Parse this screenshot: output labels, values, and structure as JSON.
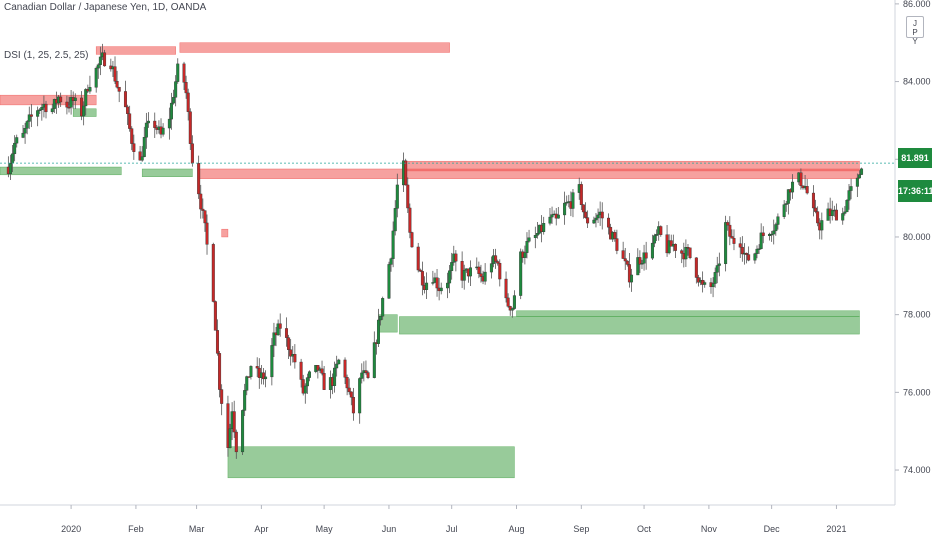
{
  "header": {
    "symbol_title": "Canadian Dollar / Japanese Yen, 1D, OANDA",
    "indicator": "DSI (1, 25, 2.5, 25)"
  },
  "currency_badge": [
    "J",
    "P",
    "Y"
  ],
  "last_price": "81.891",
  "countdown": "17:36:11",
  "colors": {
    "up": "#26a69a",
    "bull": "#1e8a3e",
    "bear": "#c62828",
    "supply": "#ef5350",
    "demand": "#43a047",
    "grid": "#ffffff",
    "axis_text": "#434651"
  },
  "chart_data": {
    "type": "candlestick",
    "y_range": [
      73.1,
      86.1
    ],
    "y_ticks": [
      {
        "value": 86,
        "label": "86.000"
      },
      {
        "value": 84,
        "label": "84.000"
      },
      {
        "value": 82,
        "label": "82.000"
      },
      {
        "value": 80,
        "label": "80.000"
      },
      {
        "value": 78,
        "label": "78.000"
      },
      {
        "value": 76,
        "label": "76.000"
      },
      {
        "value": 74,
        "label": "74.000"
      }
    ],
    "x_range": [
      "2019-11-28",
      "2021-01-29"
    ],
    "x_ticks": [
      {
        "date": "2020-01-01",
        "label": "2020"
      },
      {
        "date": "2020-02-01",
        "label": "Feb"
      },
      {
        "date": "2020-03-01",
        "label": "Mar"
      },
      {
        "date": "2020-04-01",
        "label": "Apr"
      },
      {
        "date": "2020-05-01",
        "label": "May"
      },
      {
        "date": "2020-06-01",
        "label": "Jun"
      },
      {
        "date": "2020-07-01",
        "label": "Jul"
      },
      {
        "date": "2020-08-01",
        "label": "Aug"
      },
      {
        "date": "2020-09-01",
        "label": "Sep"
      },
      {
        "date": "2020-10-01",
        "label": "Oct"
      },
      {
        "date": "2020-11-01",
        "label": "Nov"
      },
      {
        "date": "2020-12-01",
        "label": "Dec"
      },
      {
        "date": "2021-01-01",
        "label": "2021"
      }
    ],
    "close_path": [
      [
        "2019-12-02",
        81.8
      ],
      [
        "2019-12-05",
        82.4
      ],
      [
        "2019-12-09",
        82.6
      ],
      [
        "2019-12-12",
        83.0
      ],
      [
        "2019-12-16",
        83.3
      ],
      [
        "2019-12-19",
        83.4
      ],
      [
        "2019-12-23",
        83.3
      ],
      [
        "2019-12-26",
        83.6
      ],
      [
        "2019-12-30",
        83.4
      ],
      [
        "2020-01-02",
        83.5
      ],
      [
        "2020-01-06",
        83.2
      ],
      [
        "2020-01-09",
        83.9
      ],
      [
        "2020-01-13",
        84.3
      ],
      [
        "2020-01-16",
        84.6
      ],
      [
        "2020-01-20",
        84.5
      ],
      [
        "2020-01-23",
        83.9
      ],
      [
        "2020-01-27",
        83.3
      ],
      [
        "2020-01-30",
        82.5
      ],
      [
        "2020-02-03",
        81.9
      ],
      [
        "2020-02-06",
        82.8
      ],
      [
        "2020-02-10",
        82.9
      ],
      [
        "2020-02-13",
        82.6
      ],
      [
        "2020-02-17",
        83.1
      ],
      [
        "2020-02-20",
        84.0
      ],
      [
        "2020-02-22",
        84.6
      ],
      [
        "2020-02-25",
        83.7
      ],
      [
        "2020-02-28",
        82.0
      ],
      [
        "2020-03-02",
        81.2
      ],
      [
        "2020-03-05",
        80.2
      ],
      [
        "2020-03-09",
        78.5
      ],
      [
        "2020-03-12",
        76.2
      ],
      [
        "2020-03-16",
        74.6
      ],
      [
        "2020-03-18",
        75.6
      ],
      [
        "2020-03-20",
        74.6
      ],
      [
        "2020-03-24",
        76.0
      ],
      [
        "2020-03-27",
        76.7
      ],
      [
        "2020-03-31",
        76.4
      ],
      [
        "2020-04-03",
        76.4
      ],
      [
        "2020-04-07",
        77.4
      ],
      [
        "2020-04-10",
        77.7
      ],
      [
        "2020-04-14",
        77.2
      ],
      [
        "2020-04-17",
        76.8
      ],
      [
        "2020-04-21",
        76.0
      ],
      [
        "2020-04-24",
        76.4
      ],
      [
        "2020-04-28",
        76.6
      ],
      [
        "2020-05-01",
        76.2
      ],
      [
        "2020-05-05",
        76.3
      ],
      [
        "2020-05-08",
        76.8
      ],
      [
        "2020-05-12",
        76.2
      ],
      [
        "2020-05-15",
        75.5
      ],
      [
        "2020-05-19",
        76.5
      ],
      [
        "2020-05-22",
        76.3
      ],
      [
        "2020-05-26",
        77.4
      ],
      [
        "2020-05-29",
        78.4
      ],
      [
        "2020-06-02",
        79.6
      ],
      [
        "2020-06-05",
        81.3
      ],
      [
        "2020-06-08",
        81.8
      ],
      [
        "2020-06-11",
        80.1
      ],
      [
        "2020-06-15",
        79.2
      ],
      [
        "2020-06-18",
        78.8
      ],
      [
        "2020-06-22",
        79.0
      ],
      [
        "2020-06-25",
        78.7
      ],
      [
        "2020-06-29",
        78.9
      ],
      [
        "2020-07-02",
        79.4
      ],
      [
        "2020-07-06",
        79.0
      ],
      [
        "2020-07-09",
        79.1
      ],
      [
        "2020-07-13",
        79.1
      ],
      [
        "2020-07-16",
        78.9
      ],
      [
        "2020-07-20",
        79.4
      ],
      [
        "2020-07-23",
        79.3
      ],
      [
        "2020-07-27",
        78.3
      ],
      [
        "2020-07-30",
        78.2
      ],
      [
        "2020-08-03",
        79.5
      ],
      [
        "2020-08-06",
        79.8
      ],
      [
        "2020-08-10",
        80.0
      ],
      [
        "2020-08-13",
        80.2
      ],
      [
        "2020-08-17",
        80.5
      ],
      [
        "2020-08-20",
        80.4
      ],
      [
        "2020-08-24",
        80.8
      ],
      [
        "2020-08-27",
        80.9
      ],
      [
        "2020-08-31",
        81.2
      ],
      [
        "2020-09-03",
        80.4
      ],
      [
        "2020-09-07",
        80.5
      ],
      [
        "2020-09-10",
        80.6
      ],
      [
        "2020-09-14",
        80.2
      ],
      [
        "2020-09-17",
        79.9
      ],
      [
        "2020-09-21",
        79.4
      ],
      [
        "2020-09-24",
        79.0
      ],
      [
        "2020-09-28",
        79.4
      ],
      [
        "2020-10-01",
        79.5
      ],
      [
        "2020-10-05",
        79.8
      ],
      [
        "2020-10-08",
        80.1
      ],
      [
        "2020-10-12",
        79.7
      ],
      [
        "2020-10-15",
        79.8
      ],
      [
        "2020-10-19",
        79.6
      ],
      [
        "2020-10-22",
        79.6
      ],
      [
        "2020-10-26",
        79.1
      ],
      [
        "2020-10-29",
        78.7
      ],
      [
        "2020-11-02",
        78.7
      ],
      [
        "2020-11-05",
        79.1
      ],
      [
        "2020-11-09",
        80.3
      ],
      [
        "2020-11-12",
        79.9
      ],
      [
        "2020-11-16",
        79.9
      ],
      [
        "2020-11-19",
        79.4
      ],
      [
        "2020-11-23",
        79.6
      ],
      [
        "2020-11-26",
        80.0
      ],
      [
        "2020-11-30",
        80.2
      ],
      [
        "2020-12-03",
        80.3
      ],
      [
        "2020-12-07",
        80.9
      ],
      [
        "2020-12-10",
        81.3
      ],
      [
        "2020-12-14",
        81.5
      ],
      [
        "2020-12-17",
        81.3
      ],
      [
        "2020-12-21",
        80.6
      ],
      [
        "2020-12-24",
        80.3
      ],
      [
        "2020-12-28",
        80.6
      ],
      [
        "2021-01-04",
        80.6
      ],
      [
        "2021-01-07",
        81.1
      ],
      [
        "2021-01-11",
        81.4
      ],
      [
        "2021-01-13",
        81.9
      ]
    ],
    "zones": [
      {
        "kind": "supply",
        "from": "2019-11-28",
        "to": "2020-01-13",
        "top": 83.65,
        "bottom": 83.4
      },
      {
        "kind": "supply",
        "from": "2020-01-13",
        "to": "2020-02-20",
        "top": 84.9,
        "bottom": 84.7
      },
      {
        "kind": "supply",
        "from": "2020-02-22",
        "to": "2020-06-30",
        "top": 85.0,
        "bottom": 84.75
      },
      {
        "kind": "supply",
        "from": "2020-03-02",
        "to": "2021-01-12",
        "top": 81.75,
        "bottom": 81.5
      },
      {
        "kind": "supply",
        "from": "2020-06-08",
        "to": "2021-01-12",
        "top": 81.95,
        "bottom": 81.7
      },
      {
        "kind": "supply",
        "from": "2020-03-13",
        "to": "2020-03-16",
        "top": 80.2,
        "bottom": 80.0
      },
      {
        "kind": "demand",
        "from": "2019-11-28",
        "to": "2020-01-25",
        "top": 81.8,
        "bottom": 81.6
      },
      {
        "kind": "demand",
        "from": "2020-01-02",
        "to": "2020-01-13",
        "top": 83.3,
        "bottom": 83.1
      },
      {
        "kind": "demand",
        "from": "2020-02-04",
        "to": "2020-02-28",
        "top": 81.75,
        "bottom": 81.55
      },
      {
        "kind": "demand",
        "from": "2020-05-27",
        "to": "2020-06-05",
        "top": 78.0,
        "bottom": 77.55
      },
      {
        "kind": "demand",
        "from": "2020-06-06",
        "to": "2021-01-12",
        "top": 77.95,
        "bottom": 77.5
      },
      {
        "kind": "demand",
        "from": "2020-08-01",
        "to": "2021-01-12",
        "top": 78.1,
        "bottom": 77.95
      },
      {
        "kind": "demand",
        "from": "2020-03-16",
        "to": "2020-07-31",
        "top": 74.6,
        "bottom": 73.8
      }
    ]
  }
}
